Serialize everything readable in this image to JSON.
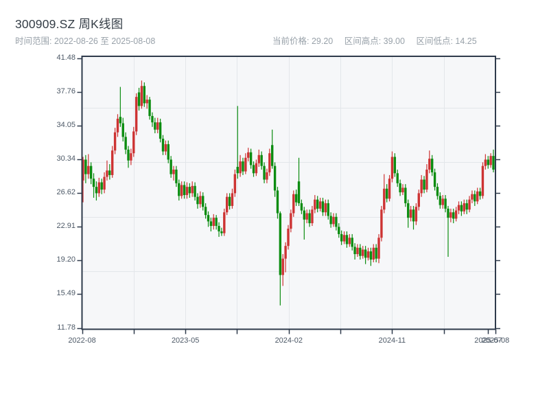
{
  "header": {
    "title": "300909.SZ 周K线图",
    "time_range": "时间范围: 2022-08-26 至 2025-08-08",
    "info_items": [
      "当前价格: 29.20",
      "区间高点: 39.00",
      "区间低点: 14.25"
    ]
  },
  "chart_data": {
    "type": "candlestick",
    "title": "300909.SZ 周K线图",
    "symbol": "300909.SZ",
    "interval": "weekly",
    "date_start": "2022-08-26",
    "date_end": "2025-08-08",
    "current_price": 29.2,
    "range_high": 39.0,
    "range_low": 14.25,
    "up_color": "#cd3333",
    "down_color": "#0b8c10",
    "plot_bg": "#f6f7f9",
    "grid_color": "#e3e6ea",
    "axis_color": "#2e3a4b",
    "ylim": [
      11.78,
      41.48
    ],
    "grid": true,
    "y_ticks": [
      "41.48",
      "37.76",
      "34.05",
      "30.34",
      "26.62",
      "22.91",
      "19.20",
      "15.49",
      "11.78"
    ],
    "y_grid_values": [
      36,
      30,
      24,
      18
    ],
    "x_ticks": [
      {
        "pos": 0.0,
        "label": "2022-08",
        "grid": false
      },
      {
        "pos": 0.125,
        "label": "",
        "grid": true
      },
      {
        "pos": 0.25,
        "label": "2023-05",
        "grid": true
      },
      {
        "pos": 0.375,
        "label": "",
        "grid": true
      },
      {
        "pos": 0.5,
        "label": "2024-02",
        "grid": true
      },
      {
        "pos": 0.625,
        "label": "",
        "grid": true
      },
      {
        "pos": 0.75,
        "label": "2024-11",
        "grid": true
      },
      {
        "pos": 0.875,
        "label": "",
        "grid": true
      },
      {
        "pos": 0.9824,
        "label": "2025-07",
        "grid": false
      },
      {
        "pos": 1.0,
        "label": "2025-08",
        "grid": false
      }
    ],
    "candles_format": [
      "open",
      "high",
      "low",
      "close"
    ],
    "candles": [
      [
        28.0,
        30.6,
        25.6,
        30.3
      ],
      [
        30.3,
        30.8,
        27.7,
        28.7
      ],
      [
        28.7,
        30.9,
        28.2,
        29.6
      ],
      [
        29.6,
        30.0,
        27.6,
        28.2
      ],
      [
        28.2,
        28.8,
        26.1,
        27.3
      ],
      [
        27.3,
        27.9,
        25.8,
        26.6
      ],
      [
        26.6,
        28.3,
        26.2,
        27.8
      ],
      [
        27.8,
        28.2,
        26.5,
        27.0
      ],
      [
        27.0,
        28.9,
        26.6,
        28.4
      ],
      [
        28.4,
        30.2,
        28.0,
        29.1
      ],
      [
        29.1,
        29.8,
        28.1,
        28.6
      ],
      [
        28.6,
        31.8,
        28.3,
        31.3
      ],
      [
        31.3,
        33.8,
        30.9,
        33.3
      ],
      [
        33.3,
        35.3,
        32.8,
        34.8
      ],
      [
        35.0,
        38.3,
        33.9,
        34.3
      ],
      [
        34.3,
        34.9,
        32.3,
        32.8
      ],
      [
        32.8,
        33.3,
        30.9,
        31.4
      ],
      [
        31.4,
        31.8,
        29.4,
        30.2
      ],
      [
        30.2,
        31.5,
        29.7,
        31.0
      ],
      [
        31.0,
        33.9,
        30.6,
        33.4
      ],
      [
        33.4,
        37.6,
        33.0,
        37.2
      ],
      [
        37.7,
        38.2,
        35.7,
        36.2
      ],
      [
        36.2,
        39.0,
        35.9,
        38.4
      ],
      [
        38.4,
        38.8,
        36.1,
        36.5
      ],
      [
        36.5,
        37.4,
        35.9,
        36.9
      ],
      [
        36.9,
        37.2,
        34.7,
        35.1
      ],
      [
        35.1,
        35.5,
        33.9,
        34.4
      ],
      [
        34.4,
        34.9,
        33.2,
        33.6
      ],
      [
        33.6,
        34.9,
        33.2,
        34.4
      ],
      [
        34.4,
        34.8,
        32.2,
        32.6
      ],
      [
        32.6,
        33.0,
        30.8,
        31.2
      ],
      [
        31.2,
        32.4,
        30.8,
        32.0
      ],
      [
        32.0,
        32.4,
        29.9,
        30.3
      ],
      [
        30.3,
        30.7,
        28.3,
        28.7
      ],
      [
        28.7,
        29.6,
        28.0,
        29.2
      ],
      [
        29.2,
        29.6,
        27.3,
        27.7
      ],
      [
        27.7,
        28.1,
        25.8,
        26.3
      ],
      [
        26.3,
        27.9,
        26.0,
        27.5
      ],
      [
        27.5,
        27.9,
        26.0,
        26.4
      ],
      [
        26.4,
        27.8,
        26.0,
        27.3
      ],
      [
        27.3,
        27.7,
        26.1,
        26.6
      ],
      [
        26.6,
        27.9,
        26.2,
        27.4
      ],
      [
        27.4,
        27.8,
        25.8,
        26.2
      ],
      [
        26.2,
        26.6,
        24.9,
        25.4
      ],
      [
        25.4,
        26.8,
        25.0,
        26.3
      ],
      [
        26.3,
        26.7,
        24.7,
        25.1
      ],
      [
        25.1,
        25.5,
        23.8,
        24.2
      ],
      [
        24.2,
        24.6,
        22.9,
        23.5
      ],
      [
        23.5,
        23.9,
        22.4,
        23.0
      ],
      [
        23.0,
        24.3,
        22.6,
        23.9
      ],
      [
        23.9,
        24.2,
        22.6,
        23.0
      ],
      [
        23.0,
        23.4,
        21.8,
        22.4
      ],
      [
        22.4,
        22.8,
        21.9,
        22.2
      ],
      [
        22.2,
        24.9,
        21.9,
        24.5
      ],
      [
        24.5,
        26.6,
        24.2,
        26.2
      ],
      [
        26.2,
        26.6,
        24.8,
        25.2
      ],
      [
        25.2,
        27.1,
        24.9,
        26.6
      ],
      [
        26.6,
        29.2,
        26.2,
        28.7
      ],
      [
        29.5,
        36.2,
        28.2,
        28.8
      ],
      [
        28.8,
        30.8,
        28.4,
        30.1
      ],
      [
        30.1,
        30.5,
        28.6,
        29.0
      ],
      [
        29.0,
        31.0,
        28.7,
        30.5
      ],
      [
        30.5,
        31.6,
        30.1,
        31.1
      ],
      [
        31.1,
        31.5,
        29.3,
        29.7
      ],
      [
        29.7,
        30.1,
        28.4,
        28.8
      ],
      [
        28.8,
        30.3,
        28.5,
        29.9
      ],
      [
        29.9,
        31.4,
        29.5,
        30.8
      ],
      [
        30.8,
        31.2,
        29.2,
        29.6
      ],
      [
        29.6,
        30.0,
        27.7,
        28.1
      ],
      [
        28.1,
        29.3,
        27.7,
        28.9
      ],
      [
        28.9,
        31.5,
        28.5,
        31.0
      ],
      [
        31.9,
        33.6,
        29.3,
        29.6
      ],
      [
        29.6,
        30.0,
        26.2,
        26.9
      ],
      [
        26.9,
        27.3,
        23.8,
        24.4
      ],
      [
        24.4,
        24.6,
        14.25,
        17.6
      ],
      [
        17.6,
        19.9,
        16.4,
        19.4
      ],
      [
        19.4,
        21.2,
        17.9,
        20.8
      ],
      [
        20.8,
        23.1,
        20.4,
        22.7
      ],
      [
        22.7,
        24.8,
        22.3,
        24.4
      ],
      [
        24.4,
        26.9,
        24.0,
        26.5
      ],
      [
        26.5,
        27.0,
        25.2,
        25.6
      ],
      [
        27.9,
        30.5,
        25.2,
        25.5
      ],
      [
        25.5,
        25.9,
        24.3,
        24.7
      ],
      [
        24.7,
        25.1,
        21.5,
        23.7
      ],
      [
        23.7,
        24.8,
        23.3,
        24.4
      ],
      [
        24.4,
        24.8,
        22.9,
        23.3
      ],
      [
        23.3,
        25.2,
        23.0,
        24.8
      ],
      [
        24.8,
        26.4,
        24.4,
        25.9
      ],
      [
        25.9,
        26.3,
        24.5,
        24.9
      ],
      [
        24.9,
        26.1,
        24.6,
        25.7
      ],
      [
        25.7,
        26.1,
        24.1,
        24.5
      ],
      [
        24.5,
        25.9,
        24.1,
        25.5
      ],
      [
        25.5,
        25.9,
        23.7,
        24.1
      ],
      [
        24.1,
        24.5,
        22.8,
        23.2
      ],
      [
        23.2,
        24.4,
        22.9,
        24.0
      ],
      [
        24.0,
        24.4,
        22.5,
        22.9
      ],
      [
        22.9,
        23.3,
        21.7,
        22.1
      ],
      [
        22.1,
        22.5,
        20.9,
        21.3
      ],
      [
        21.3,
        22.4,
        21.0,
        22.0
      ],
      [
        22.0,
        22.4,
        20.6,
        21.0
      ],
      [
        21.0,
        22.1,
        20.7,
        21.7
      ],
      [
        21.7,
        22.1,
        20.3,
        20.7
      ],
      [
        20.7,
        21.1,
        19.3,
        19.9
      ],
      [
        19.9,
        21.0,
        19.6,
        20.6
      ],
      [
        20.6,
        21.0,
        19.3,
        19.7
      ],
      [
        19.7,
        20.8,
        19.4,
        20.4
      ],
      [
        20.4,
        20.8,
        18.8,
        19.5
      ],
      [
        19.5,
        20.6,
        19.2,
        20.2
      ],
      [
        20.2,
        20.6,
        18.6,
        19.3
      ],
      [
        19.3,
        21.0,
        19.0,
        20.6
      ],
      [
        20.6,
        21.0,
        19.0,
        19.4
      ],
      [
        19.4,
        22.1,
        18.9,
        21.7
      ],
      [
        21.7,
        25.2,
        21.3,
        24.8
      ],
      [
        24.8,
        28.7,
        24.4,
        27.1
      ],
      [
        27.1,
        27.6,
        25.6,
        26.0
      ],
      [
        26.0,
        28.6,
        25.7,
        28.2
      ],
      [
        28.2,
        31.2,
        27.8,
        30.6
      ],
      [
        30.6,
        31.0,
        28.4,
        28.8
      ],
      [
        28.8,
        29.2,
        27.3,
        27.7
      ],
      [
        27.7,
        28.1,
        26.3,
        26.7
      ],
      [
        26.7,
        27.6,
        26.4,
        27.2
      ],
      [
        27.2,
        27.6,
        25.1,
        25.5
      ],
      [
        25.5,
        25.9,
        22.8,
        23.9
      ],
      [
        23.9,
        25.2,
        23.5,
        24.8
      ],
      [
        24.8,
        25.2,
        22.6,
        23.5
      ],
      [
        23.5,
        25.5,
        23.1,
        25.1
      ],
      [
        25.1,
        27.0,
        24.7,
        26.6
      ],
      [
        26.6,
        28.6,
        26.2,
        28.1
      ],
      [
        28.1,
        28.5,
        26.6,
        27.0
      ],
      [
        27.0,
        29.8,
        26.7,
        29.2
      ],
      [
        29.2,
        31.3,
        28.8,
        30.4
      ],
      [
        30.4,
        30.8,
        28.5,
        28.9
      ],
      [
        28.9,
        29.3,
        26.9,
        27.3
      ],
      [
        27.3,
        27.7,
        25.9,
        26.3
      ],
      [
        26.3,
        26.7,
        24.9,
        25.3
      ],
      [
        25.3,
        26.4,
        24.9,
        26.0
      ],
      [
        26.0,
        26.4,
        24.5,
        24.9
      ],
      [
        24.9,
        25.2,
        19.6,
        23.9
      ],
      [
        23.9,
        24.9,
        23.4,
        24.5
      ],
      [
        24.5,
        24.9,
        23.3,
        23.8
      ],
      [
        23.8,
        25.1,
        23.5,
        24.7
      ],
      [
        24.7,
        25.7,
        24.3,
        25.3
      ],
      [
        25.3,
        25.7,
        24.1,
        24.6
      ],
      [
        24.6,
        25.9,
        24.3,
        25.5
      ],
      [
        25.5,
        25.9,
        24.3,
        24.8
      ],
      [
        24.8,
        26.3,
        24.5,
        25.9
      ],
      [
        25.9,
        26.9,
        25.5,
        26.5
      ],
      [
        26.5,
        26.9,
        25.2,
        25.7
      ],
      [
        25.7,
        27.2,
        25.4,
        26.8
      ],
      [
        26.8,
        27.2,
        25.9,
        26.3
      ],
      [
        26.3,
        30.0,
        26.0,
        29.6
      ],
      [
        29.6,
        30.9,
        29.2,
        30.3
      ],
      [
        30.3,
        30.7,
        29.3,
        29.7
      ],
      [
        29.7,
        31.0,
        29.4,
        30.7
      ],
      [
        30.7,
        31.4,
        28.9,
        29.2
      ]
    ]
  }
}
